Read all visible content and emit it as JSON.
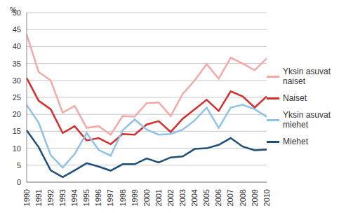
{
  "chart_data": {
    "type": "line",
    "y_label": "%",
    "categories": [
      "1990",
      "1991",
      "1992",
      "1993",
      "1994",
      "1995",
      "1996",
      "1997",
      "1998",
      "1999",
      "2000",
      "2001",
      "2002",
      "2003",
      "2004",
      "2005",
      "2006",
      "2007",
      "2008",
      "2009",
      "2010"
    ],
    "series": [
      {
        "name": "Yksin asuvat naiset",
        "color": "#f4a9a8",
        "values": [
          43.5,
          32.5,
          30,
          20.5,
          22.5,
          16,
          16.5,
          14,
          19.5,
          19.3,
          23.3,
          23.5,
          19.5,
          26,
          30,
          34.8,
          30.5,
          36.7,
          35,
          33,
          36.5
        ]
      },
      {
        "name": "Naiset",
        "color": "#d62e2e",
        "values": [
          30.7,
          24,
          21.5,
          14.5,
          16.5,
          12.3,
          13,
          11.2,
          14.2,
          14,
          17,
          18,
          14.8,
          18.7,
          21.5,
          24.3,
          21,
          26.8,
          25.3,
          22,
          25.3
        ]
      },
      {
        "name": "Yksin asuvat miehet",
        "color": "#8fc2ea",
        "values": [
          22.8,
          17.5,
          8,
          4.3,
          8.3,
          14.5,
          9.5,
          7.8,
          15.3,
          18.5,
          15.5,
          14,
          14.2,
          15.5,
          18.2,
          22,
          16,
          22,
          22.8,
          21.5,
          19.3
        ]
      },
      {
        "name": "Miehet",
        "color": "#1f4e79",
        "values": [
          15.3,
          10.3,
          3.5,
          1.5,
          3.5,
          5.6,
          4.6,
          3.4,
          5.3,
          5.3,
          7,
          5.8,
          7.3,
          7.6,
          9.8,
          10,
          11,
          13,
          10.5,
          9.4,
          9.6
        ]
      }
    ],
    "ylim": [
      0,
      50
    ],
    "yticks": [
      0,
      5,
      10,
      15,
      20,
      25,
      30,
      35,
      40,
      45,
      50
    ],
    "grid": true,
    "legend": "right"
  }
}
